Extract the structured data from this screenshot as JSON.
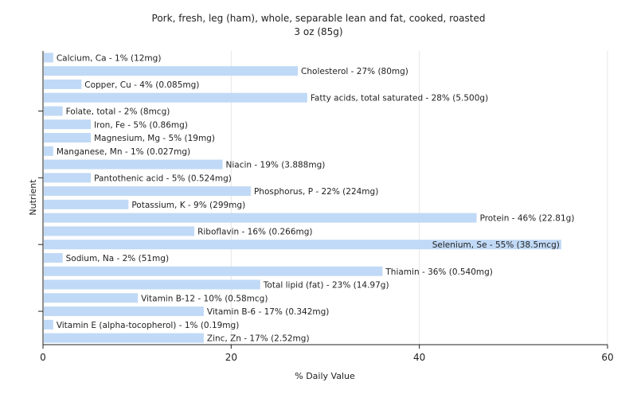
{
  "chart_data": {
    "type": "bar",
    "orientation": "horizontal",
    "title": "Pork, fresh, leg (ham), whole, separable lean and fat, cooked, roasted",
    "subtitle": "3 oz (85g)",
    "xlabel": "% Daily Value",
    "ylabel": "Nutrient",
    "xlim": [
      0,
      60
    ],
    "xticks": [
      0,
      20,
      40,
      60
    ],
    "grid": true,
    "bar_color": "#c0d9f6",
    "categories": [
      "Calcium, Ca",
      "Cholesterol",
      "Copper, Cu",
      "Fatty acids, total saturated",
      "Folate, total",
      "Iron, Fe",
      "Magnesium, Mg",
      "Manganese, Mn",
      "Niacin",
      "Pantothenic acid",
      "Phosphorus, P",
      "Potassium, K",
      "Protein",
      "Riboflavin",
      "Selenium, Se",
      "Sodium, Na",
      "Thiamin",
      "Total lipid (fat)",
      "Vitamin B-12",
      "Vitamin B-6",
      "Vitamin E (alpha-tocopherol)",
      "Zinc, Zn"
    ],
    "values": [
      1,
      27,
      4,
      28,
      2,
      5,
      5,
      1,
      19,
      5,
      22,
      9,
      46,
      16,
      55,
      2,
      36,
      23,
      10,
      17,
      1,
      17
    ],
    "labels": [
      "Calcium, Ca - 1% (12mg)",
      "Cholesterol - 27% (80mg)",
      "Copper, Cu - 4% (0.085mg)",
      "Fatty acids, total saturated - 28% (5.500g)",
      "Folate, total - 2% (8mcg)",
      "Iron, Fe - 5% (0.86mg)",
      "Magnesium, Mg - 5% (19mg)",
      "Manganese, Mn - 1% (0.027mg)",
      "Niacin - 19% (3.888mg)",
      "Pantothenic acid - 5% (0.524mg)",
      "Phosphorus, P - 22% (224mg)",
      "Potassium, K - 9% (299mg)",
      "Protein - 46% (22.81g)",
      "Riboflavin - 16% (0.266mg)",
      "Selenium, Se - 55% (38.5mcg)",
      "Sodium, Na - 2% (51mg)",
      "Thiamin - 36% (0.540mg)",
      "Total lipid (fat) - 23% (14.97g)",
      "Vitamin B-12 - 10% (0.58mcg)",
      "Vitamin B-6 - 17% (0.342mg)",
      "Vitamin E (alpha-tocopherol) - 1% (0.19mg)",
      "Zinc, Zn - 17% (2.52mg)"
    ]
  }
}
